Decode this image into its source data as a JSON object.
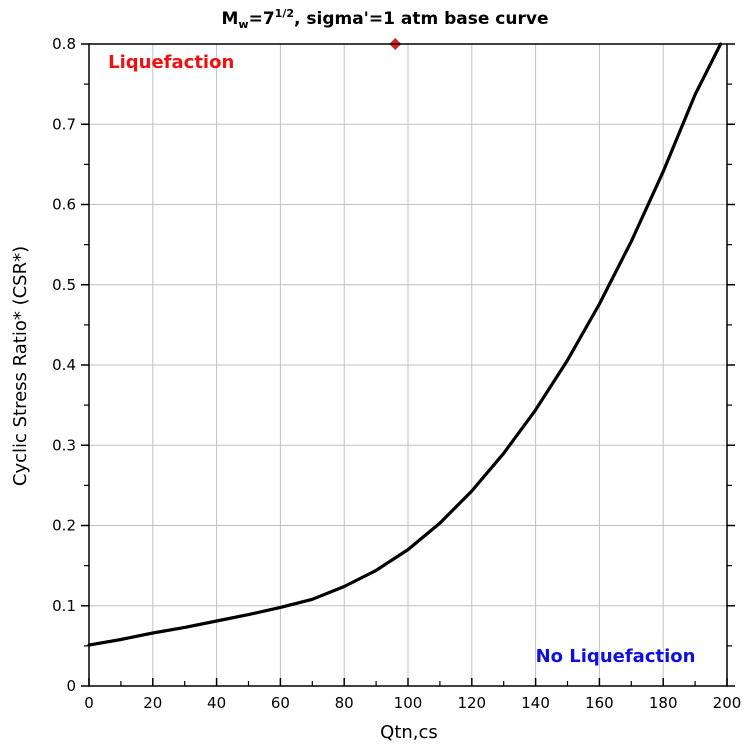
{
  "chart_data": {
    "type": "line",
    "title": {
      "prefix": "M",
      "subscript": "w",
      "middle": "=7",
      "superscript": "1/2",
      "suffix": ", sigma'=1 atm base curve"
    },
    "xlabel": "Qtn,cs",
    "ylabel": "Cyclic Stress Ratio* (CSR*)",
    "xlim": [
      0,
      200
    ],
    "ylim": [
      0,
      0.8
    ],
    "xticks": [
      0,
      20,
      40,
      60,
      80,
      100,
      120,
      140,
      160,
      180,
      200
    ],
    "xtick_labels": [
      "0",
      "20",
      "40",
      "60",
      "80",
      "100",
      "120",
      "140",
      "160",
      "180",
      "200"
    ],
    "yticks": [
      0,
      0.1,
      0.2,
      0.3,
      0.4,
      0.5,
      0.6,
      0.7,
      0.8
    ],
    "ytick_labels": [
      "0",
      "0.1",
      "0.2",
      "0.3",
      "0.4",
      "0.5",
      "0.6",
      "0.7",
      "0.8"
    ],
    "grid": true,
    "series": [
      {
        "color": "#000000",
        "x": [
          0,
          10,
          20,
          30,
          40,
          50,
          60,
          70,
          80,
          90,
          100,
          110,
          120,
          130,
          140,
          150,
          160,
          170,
          180,
          190,
          198
        ],
        "y": [
          0.051,
          0.058,
          0.066,
          0.073,
          0.081,
          0.089,
          0.098,
          0.108,
          0.124,
          0.144,
          0.17,
          0.203,
          0.243,
          0.29,
          0.344,
          0.406,
          0.476,
          0.554,
          0.641,
          0.737,
          0.8
        ]
      }
    ],
    "markers": [
      {
        "x": 96,
        "y": 0.8,
        "color": "#e02020",
        "shape": "diamond"
      }
    ],
    "annotations": [
      {
        "text": "Liquefaction",
        "color": "#ee1111",
        "x": 6,
        "y": 0.77
      },
      {
        "text": "No Liquefaction",
        "color": "#1010dd",
        "x": 140,
        "y": 0.03
      }
    ]
  }
}
